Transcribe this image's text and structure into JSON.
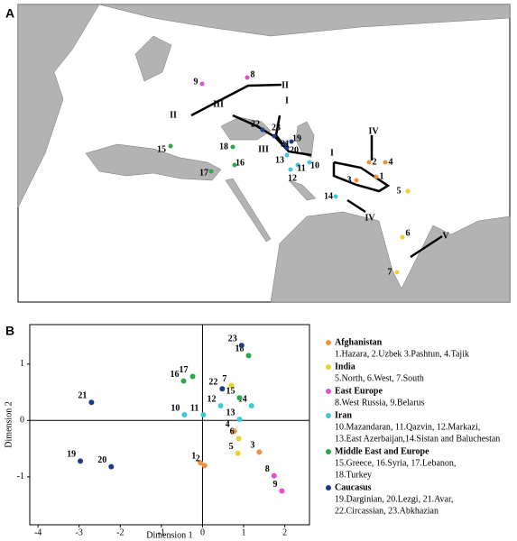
{
  "map": {
    "panel": "A",
    "zone_labels": [
      "I",
      "I",
      "II",
      "II",
      "III",
      "III",
      "IV",
      "IV",
      "V"
    ]
  },
  "chart_data": {
    "type": "scatter",
    "panel": "B",
    "x_label": "Dimension 1",
    "y_label": "Dimension 2",
    "xlim": [
      -4.2,
      2.6
    ],
    "ylim": [
      -1.85,
      1.7
    ],
    "xticks": [
      -4,
      -3,
      -2,
      -1,
      0,
      1,
      2
    ],
    "yticks": [
      -1,
      0,
      1
    ],
    "series": [
      {
        "name": "Afghanistan",
        "color": "#f0913c",
        "description": [
          "1.Hazara, 2.Uzbek 3.Pashtun, 4.Tajik"
        ],
        "labels": [
          "1",
          "2",
          "3",
          "4"
        ],
        "x": [
          -0.05,
          0.05,
          1.38,
          0.77
        ],
        "values": [
          -0.75,
          -0.8,
          -0.56,
          -0.19
        ]
      },
      {
        "name": "India",
        "color": "#f2d02a",
        "description": [
          "5.North, 6.West, 7.South"
        ],
        "labels": [
          "5",
          "6",
          "7"
        ],
        "x": [
          0.86,
          0.88,
          0.7
        ],
        "values": [
          -0.58,
          -0.32,
          0.62
        ]
      },
      {
        "name": "East Europe",
        "color": "#e64bd2",
        "description": [
          "8.West Russia, 9.Belarus"
        ],
        "labels": [
          "8",
          "9"
        ],
        "x": [
          1.74,
          1.93
        ],
        "values": [
          -0.98,
          -1.25
        ]
      },
      {
        "name": "Iran",
        "color": "#3fc8d8",
        "description": [
          "10.Mazandaran, 11.Qazvin, 12.Markazi,",
          "13.East Azerbaijan,14.Sistan and Baluchestan"
        ],
        "labels": [
          "10",
          "11",
          "12",
          "13",
          "14"
        ],
        "x": [
          -0.44,
          0.02,
          0.44,
          0.9,
          1.19
        ],
        "values": [
          0.1,
          0.1,
          0.26,
          0.02,
          0.26
        ]
      },
      {
        "name": "Middle East and Europe",
        "color": "#2aa84a",
        "description": [
          "15.Greece, 16.Syria, 17.Lebanon,",
          "18.Turkey"
        ],
        "labels": [
          "15",
          "16",
          "17",
          "18"
        ],
        "x": [
          0.9,
          -0.46,
          -0.24,
          1.12
        ],
        "values": [
          0.4,
          0.7,
          0.78,
          1.15
        ]
      },
      {
        "name": "Caucasus",
        "color": "#1f3a8a",
        "description": [
          "19.Darginian, 20.Lezgi, 21.Avar,",
          "22.Circassian, 23.Abkhazian"
        ],
        "labels": [
          "19",
          "20",
          "21",
          "22",
          "23"
        ],
        "x": [
          -2.97,
          -2.22,
          -2.7,
          0.48,
          0.95
        ],
        "values": [
          -0.72,
          -0.82,
          0.32,
          0.56,
          1.33
        ]
      }
    ]
  }
}
